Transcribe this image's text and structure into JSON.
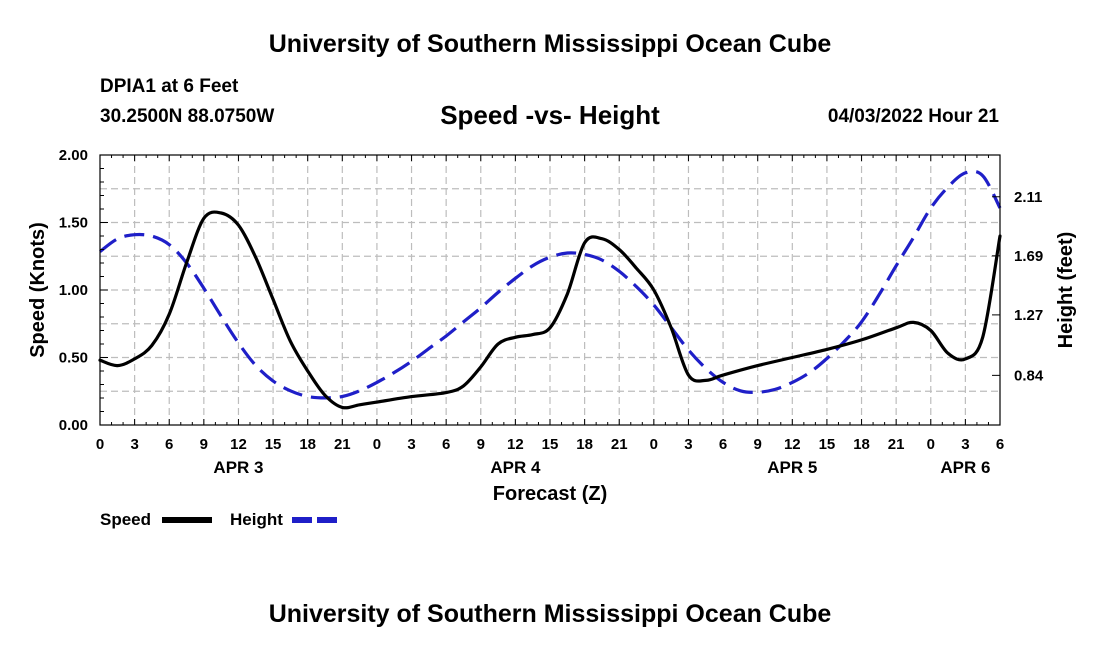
{
  "header": {
    "title": "University of Southern Mississippi Ocean Cube",
    "station_name": "DPIA1 at 6 Feet",
    "station_coords": "30.2500N  88.0750W",
    "date": "04/03/2022 Hour 21"
  },
  "footer": {
    "title": "University of Southern Mississippi Ocean Cube"
  },
  "chart_data": {
    "type": "line",
    "title": "Speed -vs- Height",
    "xlabel": "Forecast (Z)",
    "ylabel_left": "Speed (Knots)",
    "ylabel_right": "Height (feet)",
    "x_range_hours": [
      0,
      78
    ],
    "ylim_left": [
      0,
      2.0
    ],
    "ylim_right": [
      0.487,
      2.407
    ],
    "y_ticks_left": [
      "0.00",
      "0.50",
      "1.00",
      "1.50",
      "2.00"
    ],
    "y_ticks_left_values": [
      0,
      0.5,
      1.0,
      1.5,
      2.0
    ],
    "y_ticks_right": [
      "0.84",
      "1.27",
      "1.69",
      "2.11"
    ],
    "y_ticks_right_values": [
      0.84,
      1.27,
      1.69,
      2.11
    ],
    "x_tick_labels": [
      "0",
      "3",
      "6",
      "9",
      "12",
      "15",
      "18",
      "21",
      "0",
      "3",
      "6",
      "9",
      "12",
      "15",
      "18",
      "21",
      "0",
      "3",
      "6",
      "9",
      "12",
      "15",
      "18",
      "21",
      "0",
      "3",
      "6"
    ],
    "day_labels": [
      {
        "label": "APR 3",
        "hour": 12
      },
      {
        "label": "APR 4",
        "hour": 36
      },
      {
        "label": "APR 5",
        "hour": 60
      },
      {
        "label": "APR 6",
        "hour": 75
      }
    ],
    "grid": true,
    "legend_position": "bottom-left",
    "series": [
      {
        "name": "Speed",
        "color": "#000000",
        "style": "solid",
        "axis": "left",
        "x": [
          0,
          1.5,
          3,
          4.5,
          6,
          7.5,
          9,
          10.5,
          12,
          13.5,
          15,
          16.5,
          18,
          19.5,
          21,
          22.5,
          24,
          27,
          30,
          31.5,
          33,
          34.5,
          36,
          37.5,
          39,
          40.5,
          42,
          43.5,
          45,
          46.5,
          48,
          49.5,
          51,
          52.5,
          54,
          57,
          60,
          63,
          66,
          69,
          70.5,
          72,
          73.5,
          75,
          76.5,
          78
        ],
        "values": [
          0.48,
          0.44,
          0.49,
          0.59,
          0.82,
          1.2,
          1.53,
          1.57,
          1.48,
          1.24,
          0.93,
          0.62,
          0.4,
          0.22,
          0.13,
          0.15,
          0.17,
          0.21,
          0.24,
          0.29,
          0.43,
          0.6,
          0.65,
          0.67,
          0.72,
          0.97,
          1.35,
          1.38,
          1.3,
          1.16,
          1.0,
          0.72,
          0.37,
          0.33,
          0.37,
          0.44,
          0.5,
          0.56,
          0.63,
          0.72,
          0.76,
          0.7,
          0.53,
          0.49,
          0.65,
          1.4
        ]
      },
      {
        "name": "Height",
        "color": "#1f1fc8",
        "style": "dashed",
        "axis": "right",
        "x": [
          0,
          1.5,
          3,
          4.5,
          6,
          7.5,
          9,
          10.5,
          12,
          13.5,
          15,
          16.5,
          18,
          19.5,
          21,
          22.5,
          24,
          25.5,
          27,
          28.5,
          30,
          31.5,
          33,
          34.5,
          36,
          37.5,
          39,
          40.5,
          42,
          43.5,
          45,
          46.5,
          48,
          49.5,
          51,
          52.5,
          54,
          55.5,
          57,
          58.5,
          60,
          61.5,
          63,
          64.5,
          66,
          67.5,
          69,
          70.5,
          72,
          73.5,
          75,
          76.5,
          78
        ],
        "values": [
          1.72,
          1.81,
          1.84,
          1.83,
          1.77,
          1.64,
          1.46,
          1.26,
          1.07,
          0.91,
          0.8,
          0.73,
          0.69,
          0.68,
          0.69,
          0.73,
          0.79,
          0.86,
          0.94,
          1.03,
          1.12,
          1.22,
          1.32,
          1.43,
          1.53,
          1.62,
          1.68,
          1.71,
          1.7,
          1.66,
          1.58,
          1.47,
          1.34,
          1.18,
          1.02,
          0.89,
          0.79,
          0.73,
          0.72,
          0.74,
          0.79,
          0.86,
          0.96,
          1.08,
          1.22,
          1.41,
          1.62,
          1.82,
          2.03,
          2.18,
          2.28,
          2.26,
          2.03
        ]
      }
    ],
    "legend": [
      {
        "name": "Speed",
        "color": "#000000",
        "style": "solid"
      },
      {
        "name": "Height",
        "color": "#1f1fc8",
        "style": "dashed"
      }
    ]
  }
}
